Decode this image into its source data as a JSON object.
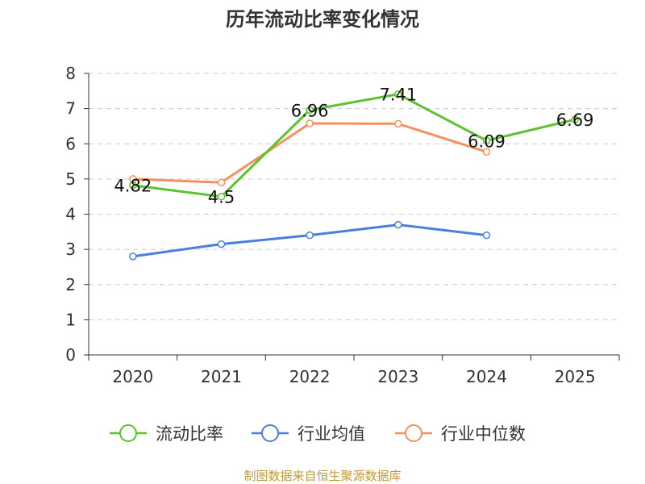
{
  "chart_data": {
    "type": "line",
    "title": "历年流动比率变化情况",
    "categories": [
      "2020",
      "2021",
      "2022",
      "2023",
      "2024",
      "2025"
    ],
    "ylim": [
      0,
      8
    ],
    "yticks": [
      0,
      1,
      2,
      3,
      4,
      5,
      6,
      7,
      8
    ],
    "grid": true,
    "legend_position": "bottom",
    "series": [
      {
        "name": "流动比率",
        "color": "#5cc22e",
        "values": [
          4.82,
          4.5,
          6.96,
          7.41,
          6.09,
          6.69
        ],
        "labels": [
          "4.82",
          "4.5",
          "6.96",
          "7.41",
          "6.09",
          "6.69"
        ]
      },
      {
        "name": "行业均值",
        "color": "#4a7fdb",
        "values": [
          2.8,
          3.15,
          3.4,
          3.7,
          3.4,
          null
        ]
      },
      {
        "name": "行业中位数",
        "color": "#f5915e",
        "values": [
          5.0,
          4.9,
          6.58,
          6.57,
          5.77,
          null
        ]
      }
    ],
    "source": "制图数据来自恒生聚源数据库"
  }
}
